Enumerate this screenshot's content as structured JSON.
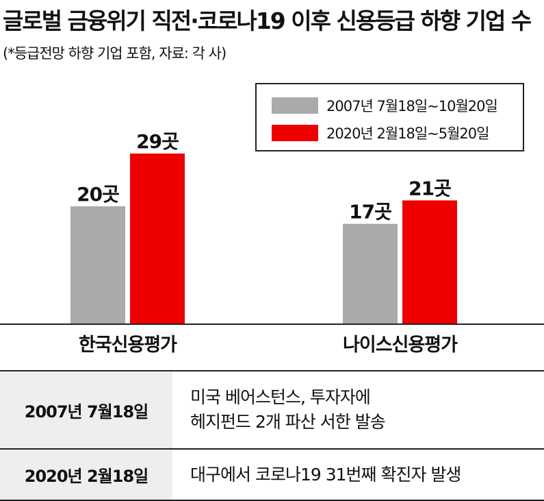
{
  "header": {
    "title": "글로벌 금융위기 직전·코로나19 이후 신용등급 하향 기업 수",
    "subtitle": "(*등급전망 하향 기업 포함, 자료: 각 사)"
  },
  "colors": {
    "series_2007": "#aaaaaa",
    "series_2020": "#ee0000",
    "axis": "#222222"
  },
  "chart_data": {
    "type": "bar",
    "categories": [
      "한국신용평가",
      "나이스신용평가"
    ],
    "series": [
      {
        "name": "2007년 7월18일~10월20일",
        "values": [
          20,
          17
        ],
        "labels": [
          "20곳",
          "17곳"
        ]
      },
      {
        "name": "2020년 2월18일~5월20일",
        "values": [
          29,
          21
        ],
        "labels": [
          "29곳",
          "21곳"
        ]
      }
    ],
    "ylim": [
      0,
      29
    ],
    "legend": "top-right",
    "grid": false
  },
  "table": {
    "rows": [
      {
        "date": "2007년 7월18일",
        "lines": [
          "미국 베어스턴스, 투자자에",
          "헤지펀드 2개 파산 서한 발송"
        ]
      },
      {
        "date": "2020년 2월18일",
        "lines": [
          "대구에서 코로나19 31번째 확진자 발생"
        ]
      }
    ]
  }
}
